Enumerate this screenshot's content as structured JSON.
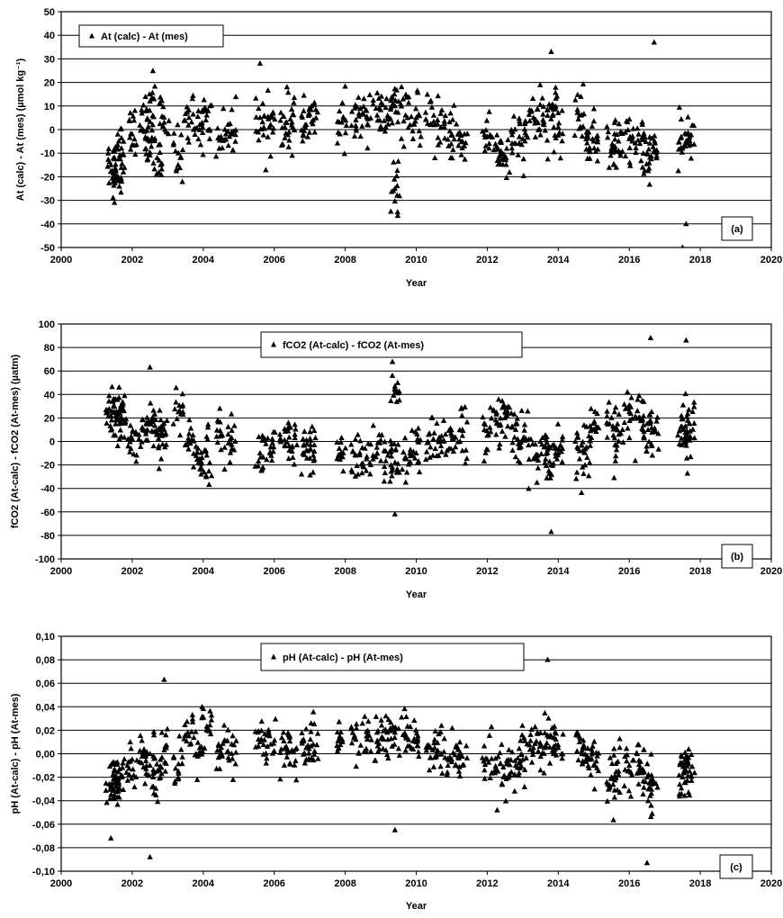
{
  "chart_data": [
    {
      "type": "scatter",
      "title": "",
      "xlabel": "Year",
      "ylabel": "At (calc) - At (mes) (µmol kg⁻¹)",
      "xlim": [
        2000,
        2020
      ],
      "ylim": [
        -50,
        50
      ],
      "x_ticks": [
        2000,
        2002,
        2004,
        2006,
        2008,
        2010,
        2012,
        2014,
        2016,
        2018,
        2020
      ],
      "y_ticks": [
        -50,
        -40,
        -30,
        -20,
        -10,
        0,
        10,
        20,
        30,
        40,
        50
      ],
      "y_tick_labels": [
        "-50",
        "-40",
        "-30",
        "-20",
        "-10",
        "0",
        "10",
        "20",
        "30",
        "40",
        "50"
      ],
      "grid": "horizontal",
      "marker": "triangle",
      "legend": {
        "placement": "top-left",
        "entries": [
          "At (calc) - At (mes)"
        ]
      },
      "panel_label": "(a)",
      "series": [
        {
          "x": [
            2001.4,
            2001.5,
            2001.6,
            2001.7,
            2002.0,
            2002.3,
            2002.5,
            2002.7,
            2002.9,
            2003.3,
            2003.6,
            2003.9,
            2004.1,
            2004.5,
            2004.8,
            2005.6,
            2005.9,
            2006.3,
            2006.5,
            2006.9,
            2007.1,
            2007.9,
            2008.3,
            2008.6,
            2008.9,
            2009.2,
            2009.4,
            2009.7,
            2010.0,
            2010.4,
            2010.7,
            2011.0,
            2011.3,
            2012.0,
            2012.3,
            2012.5,
            2012.8,
            2013.0,
            2013.3,
            2013.6,
            2013.8,
            2014.0,
            2014.6,
            2014.8,
            2015.0,
            2015.5,
            2015.7,
            2016.0,
            2016.3,
            2016.5,
            2016.7,
            2017.5,
            2017.7,
            2017.6,
            2017.5,
            2016.7,
            2013.8,
            2002.5,
            2001.5,
            2005.6,
            2009.4
          ],
          "y": [
            -15,
            -12,
            -20,
            -8,
            -2,
            0,
            -5,
            -12,
            3,
            -10,
            5,
            2,
            6,
            -3,
            -2,
            5,
            2,
            1,
            3,
            2,
            4,
            3,
            4,
            8,
            6,
            5,
            10,
            6,
            5,
            2,
            1,
            -2,
            -5,
            -3,
            -8,
            -12,
            -6,
            -4,
            5,
            2,
            10,
            1,
            6,
            -3,
            -5,
            -8,
            -5,
            -4,
            -6,
            -10,
            -9,
            -8,
            -3,
            -40,
            -50,
            37,
            33,
            12,
            -31,
            28,
            -25
          ]
        }
      ]
    },
    {
      "type": "scatter",
      "title": "",
      "xlabel": "Year",
      "ylabel": "fCO2 (At-calc) - fCO2 (At-mes) (µatm)",
      "xlim": [
        2000,
        2020
      ],
      "ylim": [
        -100,
        100
      ],
      "x_ticks": [
        2000,
        2002,
        2004,
        2006,
        2008,
        2010,
        2012,
        2014,
        2016,
        2018,
        2020
      ],
      "y_ticks": [
        -100,
        -80,
        -60,
        -40,
        -20,
        0,
        20,
        40,
        60,
        80,
        100
      ],
      "y_tick_labels": [
        "-100",
        "-80",
        "-60",
        "-40",
        "-20",
        "0",
        "20",
        "40",
        "60",
        "80",
        "100"
      ],
      "grid": "horizontal",
      "marker": "triangle",
      "legend": {
        "placement": "top-center",
        "entries": [
          "fCO2 (At-calc) - fCO2 (At-mes)"
        ]
      },
      "panel_label": "(b)",
      "series": [
        {
          "x": [
            2001.4,
            2001.5,
            2001.6,
            2001.7,
            2002.0,
            2002.3,
            2002.5,
            2002.7,
            2002.9,
            2003.3,
            2003.6,
            2003.9,
            2004.1,
            2004.5,
            2004.8,
            2005.6,
            2005.9,
            2006.3,
            2006.5,
            2006.9,
            2007.1,
            2007.9,
            2008.3,
            2008.6,
            2008.9,
            2009.2,
            2009.4,
            2009.7,
            2010.0,
            2010.4,
            2010.7,
            2011.0,
            2011.3,
            2012.0,
            2012.3,
            2012.5,
            2012.8,
            2013.0,
            2013.3,
            2013.6,
            2013.8,
            2014.0,
            2014.6,
            2014.8,
            2015.0,
            2015.5,
            2015.7,
            2016.0,
            2016.3,
            2016.5,
            2016.7,
            2017.5,
            2017.6,
            2017.7,
            2016.6,
            2017.6,
            2013.8,
            2002.5,
            2009.4,
            2009.4
          ],
          "y": [
            22,
            25,
            18,
            20,
            2,
            10,
            15,
            8,
            10,
            25,
            0,
            -15,
            -12,
            5,
            3,
            -10,
            -5,
            -4,
            -5,
            -8,
            -12,
            -10,
            -12,
            -15,
            -10,
            -12,
            -18,
            -15,
            -10,
            -5,
            0,
            5,
            10,
            5,
            15,
            20,
            10,
            2,
            -15,
            -5,
            -20,
            -10,
            -15,
            -5,
            10,
            20,
            0,
            25,
            20,
            15,
            10,
            10,
            5,
            15,
            88,
            86,
            -77,
            63,
            47,
            -62
          ]
        }
      ]
    },
    {
      "type": "scatter",
      "title": "",
      "xlabel": "Year",
      "ylabel": "pH (At-calc) - pH (At-mes)",
      "xlim": [
        2000,
        2020
      ],
      "ylim": [
        -0.1,
        0.1
      ],
      "x_ticks": [
        2000,
        2002,
        2004,
        2006,
        2008,
        2010,
        2012,
        2014,
        2016,
        2018,
        2020
      ],
      "y_ticks": [
        -0.1,
        -0.08,
        -0.06,
        -0.04,
        -0.02,
        0.0,
        0.02,
        0.04,
        0.06,
        0.08,
        0.1
      ],
      "y_tick_labels": [
        "-0,10",
        "-0,08",
        "-0,06",
        "-0,04",
        "-0,02",
        "0,00",
        "0,02",
        "0,04",
        "0,06",
        "0,08",
        "0,10"
      ],
      "grid": "horizontal",
      "marker": "triangle",
      "legend": {
        "placement": "top-center",
        "entries": [
          "pH (At-calc) - pH (At-mes)"
        ]
      },
      "panel_label": "(c)",
      "series": [
        {
          "x": [
            2001.4,
            2001.5,
            2001.6,
            2001.7,
            2002.0,
            2002.3,
            2002.5,
            2002.7,
            2002.9,
            2003.3,
            2003.6,
            2003.9,
            2004.1,
            2004.5,
            2004.8,
            2005.6,
            2005.9,
            2006.3,
            2006.5,
            2006.9,
            2007.1,
            2007.9,
            2008.3,
            2008.6,
            2008.9,
            2009.2,
            2009.4,
            2009.7,
            2010.0,
            2010.4,
            2010.7,
            2011.0,
            2011.3,
            2012.0,
            2012.3,
            2012.5,
            2012.8,
            2013.0,
            2013.3,
            2013.6,
            2013.8,
            2014.0,
            2014.6,
            2014.8,
            2015.0,
            2015.5,
            2015.7,
            2016.0,
            2016.3,
            2016.5,
            2016.7,
            2017.5,
            2017.6,
            2017.7,
            2013.7,
            2016.5,
            2002.5,
            2001.4,
            2009.4,
            2002.9
          ],
          "y": [
            -0.028,
            -0.025,
            -0.03,
            -0.02,
            -0.005,
            0.0,
            -0.01,
            -0.015,
            0.003,
            -0.015,
            0.015,
            0.005,
            0.02,
            0.0,
            0.0,
            0.01,
            0.008,
            0.005,
            0.003,
            0.005,
            0.008,
            0.01,
            0.012,
            0.015,
            0.01,
            0.012,
            0.018,
            0.015,
            0.01,
            0.005,
            0.0,
            -0.005,
            -0.01,
            -0.005,
            -0.015,
            -0.02,
            -0.01,
            -0.005,
            0.005,
            0.0,
            0.015,
            0.005,
            0.01,
            -0.005,
            -0.01,
            -0.02,
            -0.015,
            -0.01,
            -0.012,
            -0.02,
            -0.025,
            -0.02,
            -0.01,
            -0.015,
            0.08,
            -0.093,
            -0.088,
            -0.072,
            -0.065,
            0.063
          ]
        }
      ]
    }
  ]
}
